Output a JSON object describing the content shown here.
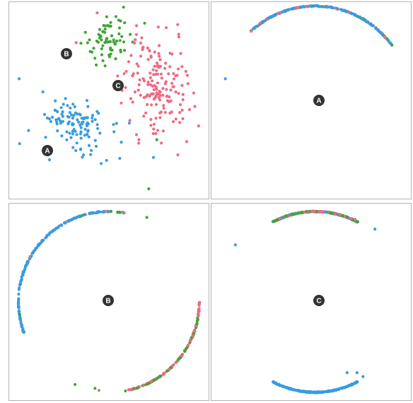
{
  "colors": {
    "A": "#3b9be0",
    "B": "#3fa535",
    "C": "#ee6b82",
    "badge": "#333333"
  },
  "labels": {
    "A": "A",
    "B": "B",
    "C": "C"
  },
  "chart_data": [
    {
      "type": "scatter",
      "panel": "top-left",
      "badges": [
        "A",
        "B",
        "C"
      ],
      "clusters": [
        {
          "group": "A",
          "center": [
            0.33,
            0.62
          ],
          "spread": [
            0.11,
            0.065
          ],
          "count": 120,
          "tilt": 0.35
        },
        {
          "group": "B",
          "center": [
            0.5,
            0.2
          ],
          "spread": [
            0.055,
            0.075
          ],
          "count": 70,
          "tilt": 0.6
        },
        {
          "group": "C",
          "center": [
            0.75,
            0.42
          ],
          "spread": [
            0.085,
            0.12
          ],
          "count": 170,
          "tilt": -0.2
        }
      ],
      "outliers": [
        {
          "group": "A",
          "x": 0.05,
          "y": 0.39
        },
        {
          "group": "B",
          "x": 0.7,
          "y": 0.95
        },
        {
          "group": "B",
          "x": 0.74,
          "y": 0.7
        },
        {
          "group": "C",
          "x": 0.95,
          "y": 0.63
        },
        {
          "group": "C",
          "x": 0.89,
          "y": 0.71
        }
      ]
    },
    {
      "type": "scatter",
      "panel": "top-right",
      "badges": [
        "A"
      ],
      "circle_center": [
        0.52,
        0.5
      ],
      "circle_radius": 0.48,
      "arcs": [
        {
          "from": 227,
          "to": 325,
          "counts": {
            "A": 200,
            "B": 25,
            "C": 25
          }
        }
      ],
      "outliers": [
        {
          "group": "A",
          "x": 0.07,
          "y": 0.39
        }
      ]
    },
    {
      "type": "scatter",
      "panel": "bottom-left",
      "badges": [
        "B"
      ],
      "circle_center": [
        0.5,
        0.5
      ],
      "circle_radius": 0.46,
      "arcs": [
        {
          "from": 160,
          "to": 270,
          "counts": {
            "A": 180,
            "B": 6,
            "C": 6
          }
        },
        {
          "from": 268,
          "to": 280,
          "counts": {
            "A": 4,
            "B": 3,
            "C": 6
          }
        },
        {
          "from": 0,
          "to": 80,
          "counts": {
            "A": 0,
            "B": 60,
            "C": 95
          }
        }
      ],
      "outliers": [
        {
          "group": "B",
          "x": 0.69,
          "y": 0.07
        },
        {
          "group": "B",
          "x": 0.33,
          "y": 0.92
        },
        {
          "group": "B",
          "x": 0.43,
          "y": 0.94
        },
        {
          "group": "C",
          "x": 0.45,
          "y": 0.95
        }
      ]
    },
    {
      "type": "scatter",
      "panel": "bottom-right",
      "badges": [
        "C"
      ],
      "circle_center": [
        0.52,
        0.5
      ],
      "circle_radius": 0.46,
      "arcs": [
        {
          "from": 242,
          "to": 298,
          "counts": {
            "A": 60,
            "B": 140,
            "C": 120
          }
        },
        {
          "from": 62,
          "to": 118,
          "counts": {
            "A": 220,
            "B": 0,
            "C": 0
          }
        }
      ],
      "outliers": [
        {
          "group": "A",
          "x": 0.12,
          "y": 0.21
        },
        {
          "group": "A",
          "x": 0.82,
          "y": 0.13
        },
        {
          "group": "A",
          "x": 0.68,
          "y": 0.86
        },
        {
          "group": "A",
          "x": 0.76,
          "y": 0.88
        },
        {
          "group": "A",
          "x": 0.73,
          "y": 0.86
        },
        {
          "group": "C",
          "x": 0.72,
          "y": 0.08
        }
      ]
    }
  ]
}
